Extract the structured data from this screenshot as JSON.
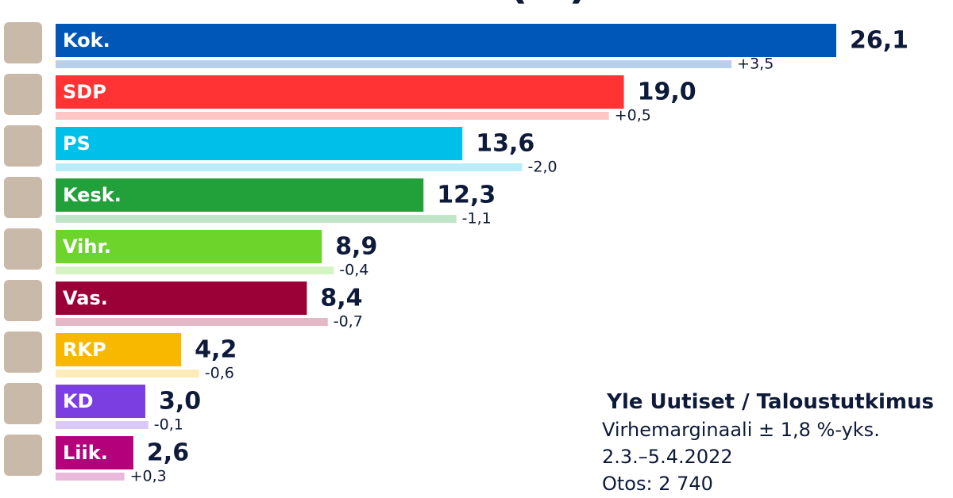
{
  "chart_data": {
    "type": "bar",
    "orientation": "horizontal",
    "title": "PUOLUEKANNATUS (%)",
    "categories": [
      "Kok.",
      "SDP",
      "PS",
      "Kesk.",
      "Vihr.",
      "Vas.",
      "RKP",
      "KD",
      "Liik."
    ],
    "values": [
      26.1,
      19.0,
      13.6,
      12.3,
      8.9,
      8.4,
      4.2,
      3.0,
      2.6
    ],
    "value_labels": [
      "26,1",
      "19,0",
      "13,6",
      "12,3",
      "8,9",
      "8,4",
      "4,2",
      "3,0",
      "2,6"
    ],
    "changes": [
      3.5,
      0.5,
      -2.0,
      -1.1,
      -0.4,
      -0.7,
      -0.6,
      -0.1,
      0.3
    ],
    "change_labels": [
      "+3,5",
      "+0,5",
      "-2,0",
      "-1,1",
      "-0,4",
      "-0,7",
      "-0,6",
      "-0,1",
      "+0,3"
    ],
    "colors": [
      "#0057b8",
      "#ff3333",
      "#00c0ea",
      "#22a03a",
      "#6cd42a",
      "#9b0036",
      "#f8b800",
      "#7b3ee0",
      "#b4007a"
    ],
    "source": "Yle Uutiset / Taloustutkimus",
    "notes": [
      "Virhemarginaali ± 1,8 %-yks.",
      "2.3.–5.4.2022",
      "Otos: 2 740"
    ]
  }
}
